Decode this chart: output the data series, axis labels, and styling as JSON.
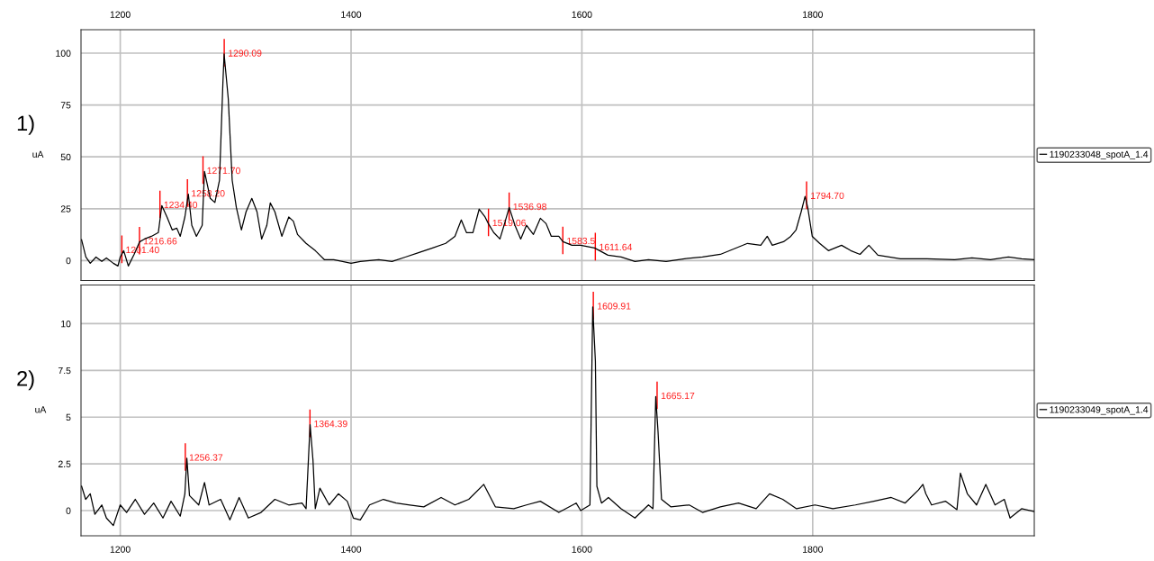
{
  "chart_data": [
    {
      "type": "line",
      "title": "1)",
      "ylabel": "uA",
      "xlim": [
        1166,
        1992
      ],
      "xticks": [
        1200,
        1400,
        1600,
        1800
      ],
      "ylim": [
        -9.6,
        111.3
      ],
      "yticks": [
        0,
        25,
        50,
        75,
        100
      ],
      "grid": true,
      "legend": "right",
      "series": [
        {
          "name": "1190233048_spotA_1.4",
          "color": "#000000",
          "x": [
            1166.5,
            1170.2,
            1174,
            1179,
            1184,
            1188,
            1194,
            1198,
            1200,
            1203,
            1207,
            1212,
            1216.7,
            1221,
            1227,
            1233,
            1236,
            1240.5,
            1245,
            1249,
            1252,
            1256,
            1259,
            1262,
            1266,
            1271,
            1273,
            1278,
            1282,
            1286,
            1289,
            1290,
            1293.6,
            1297,
            1300.6,
            1305,
            1309,
            1314,
            1318.5,
            1322.5,
            1327,
            1330,
            1334,
            1340,
            1346,
            1350,
            1353.6,
            1361,
            1369,
            1377,
            1385,
            1392.6,
            1400,
            1408,
            1424,
            1435.5,
            1447,
            1459,
            1470.6,
            1482,
            1490,
            1495.5,
            1500,
            1505.6,
            1511,
            1515.8,
            1519,
            1523.6,
            1529,
            1533,
            1537,
            1542,
            1547,
            1552,
            1558,
            1564,
            1569,
            1573.5,
            1580,
            1583.6,
            1591.4,
            1599,
            1611,
            1622.6,
            1634,
            1646,
            1657.7,
            1673,
            1689,
            1704.5,
            1720,
            1732,
            1743.5,
            1755,
            1760.6,
            1765,
            1774.7,
            1781,
            1785.6,
            1790,
            1793.4,
            1795.7,
            1799.6,
            1806,
            1813.6,
            1825,
            1833,
            1841,
            1848.7,
            1856.5,
            1876,
            1899,
            1923,
            1938,
            1954,
            1969.6,
            1981,
            1992
          ],
          "values": [
            10,
            1.7,
            -1.3,
            1.7,
            -0.4,
            1.3,
            -1.3,
            -2.6,
            1.7,
            4.8,
            -2.6,
            3,
            9,
            10.4,
            11.7,
            13.5,
            26.5,
            21,
            14.8,
            15.6,
            11.7,
            21,
            32,
            17,
            11.7,
            17,
            43,
            30,
            28,
            38.7,
            86.5,
            99.6,
            78,
            38.7,
            25.6,
            14.8,
            23.5,
            30,
            23.5,
            10.4,
            17,
            27.8,
            23.5,
            11.7,
            21,
            19,
            12.6,
            8.3,
            4.8,
            0.4,
            0.4,
            -0.4,
            -1.3,
            -0.4,
            0.4,
            -0.4,
            1.7,
            3.9,
            6.1,
            8.3,
            11.7,
            19.6,
            13.5,
            13.5,
            24.8,
            21.3,
            17.8,
            13.5,
            10.4,
            17.8,
            25.6,
            17,
            10.4,
            17,
            12.6,
            20.4,
            17.8,
            11.7,
            11.7,
            9.1,
            7.4,
            7.4,
            6.1,
            2.6,
            1.7,
            -0.4,
            0.4,
            -0.4,
            0.9,
            1.7,
            3,
            5.7,
            8.3,
            7.4,
            11.7,
            7.4,
            9.1,
            11.7,
            14.8,
            23.5,
            30.9,
            25.6,
            11.7,
            8.3,
            4.8,
            7.4,
            4.8,
            3,
            7.4,
            2.6,
            0.9,
            0.9,
            0.4,
            1.3,
            0.4,
            1.7,
            0.9,
            0.4
          ]
        }
      ],
      "annotations": [
        {
          "text": "1201.40",
          "x": 1201.4,
          "y": 4.8
        },
        {
          "text": "1216.66",
          "x": 1216.66,
          "y": 9
        },
        {
          "text": "1234.40",
          "x": 1234.4,
          "y": 26.5
        },
        {
          "text": "1258.20",
          "x": 1258.2,
          "y": 32
        },
        {
          "text": "1271.70",
          "x": 1271.7,
          "y": 43
        },
        {
          "text": "1290.09",
          "x": 1290.09,
          "y": 99.6
        },
        {
          "text": "1519.06",
          "x": 1519.06,
          "y": 17.8
        },
        {
          "text": "1536.98",
          "x": 1536.98,
          "y": 25.6
        },
        {
          "text": "1583.5",
          "x": 1583.5,
          "y": 9.1
        },
        {
          "text": "1611.64",
          "x": 1611.64,
          "y": 6.1
        },
        {
          "text": "1794.70",
          "x": 1794.7,
          "y": 30.9
        }
      ]
    },
    {
      "type": "line",
      "title": "2)",
      "ylabel": "uA",
      "xlim": [
        1166,
        1992
      ],
      "xticks": [
        1200,
        1400,
        1600,
        1800
      ],
      "ylim": [
        -1.35,
        12.07
      ],
      "yticks": [
        0,
        2.5,
        5,
        7.5,
        10
      ],
      "grid": true,
      "legend": "right",
      "series": [
        {
          "name": "1190233049_spotA_1.4",
          "color": "#000000",
          "x": [
            1166.5,
            1170,
            1174,
            1178,
            1184,
            1188,
            1194,
            1200,
            1205.5,
            1213,
            1221,
            1229,
            1237,
            1244,
            1252,
            1256,
            1257.7,
            1260,
            1268,
            1273,
            1277,
            1287,
            1295,
            1303,
            1311,
            1322,
            1334,
            1346,
            1357.5,
            1361,
            1364.5,
            1367,
            1369,
            1373,
            1381,
            1389,
            1396.7,
            1402,
            1408,
            1416,
            1428,
            1439,
            1451,
            1463,
            1478,
            1490,
            1502,
            1515,
            1525,
            1541,
            1552,
            1564,
            1580,
            1595,
            1599,
            1607,
            1609.4,
            1611.7,
            1613,
            1617,
            1623,
            1634,
            1646,
            1657.7,
            1661.6,
            1664,
            1666,
            1669,
            1677,
            1693,
            1704.5,
            1720,
            1735.7,
            1751,
            1762.6,
            1774,
            1786,
            1802,
            1817.5,
            1837,
            1853,
            1868,
            1880,
            1891.6,
            1895.5,
            1898,
            1903,
            1915,
            1925,
            1928,
            1934,
            1942,
            1950,
            1958,
            1966,
            1971,
            1981,
            1992
          ],
          "values": [
            1.3,
            0.6,
            0.9,
            -0.2,
            0.3,
            -0.4,
            -0.8,
            0.3,
            -0.1,
            0.6,
            -0.2,
            0.4,
            -0.4,
            0.5,
            -0.3,
            0.9,
            2.8,
            0.8,
            0.3,
            1.5,
            0.3,
            0.6,
            -0.5,
            0.7,
            -0.4,
            -0.1,
            0.6,
            0.3,
            0.4,
            0.1,
            4.6,
            2.7,
            0.1,
            1.2,
            0.3,
            0.9,
            0.5,
            -0.4,
            -0.5,
            0.3,
            0.6,
            0.4,
            0.3,
            0.2,
            0.7,
            0.3,
            0.6,
            1.4,
            0.2,
            0.1,
            0.3,
            0.5,
            -0.1,
            0.4,
            0,
            0.3,
            10.9,
            8,
            1.3,
            0.4,
            0.7,
            0.1,
            -0.4,
            0.3,
            0.1,
            6.1,
            4.2,
            0.6,
            0.2,
            0.3,
            -0.1,
            0.2,
            0.4,
            0.1,
            0.9,
            0.6,
            0.1,
            0.3,
            0.1,
            0.3,
            0.5,
            0.7,
            0.4,
            1.1,
            1.4,
            0.9,
            0.3,
            0.5,
            0.05,
            2,
            0.9,
            0.3,
            1.4,
            0.3,
            0.6,
            -0.4,
            0.1,
            -0.05
          ]
        }
      ],
      "annotations": [
        {
          "text": "1256.37",
          "x": 1256.37,
          "y": 2.8
        },
        {
          "text": "1364.39",
          "x": 1364.39,
          "y": 4.6
        },
        {
          "text": "1609.91",
          "x": 1609.91,
          "y": 10.9
        },
        {
          "text": "1665.17",
          "x": 1665.17,
          "y": 6.1
        }
      ]
    }
  ]
}
